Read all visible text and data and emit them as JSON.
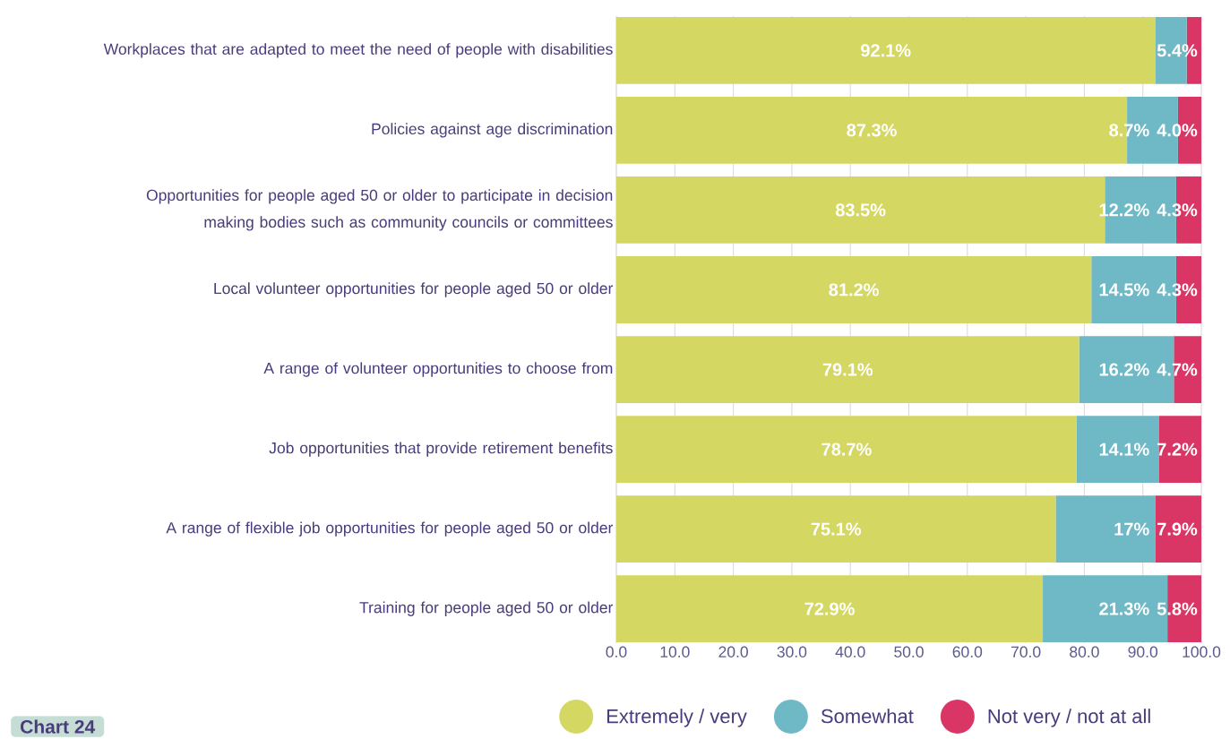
{
  "chart_data": {
    "type": "bar",
    "orientation": "horizontal",
    "stacked": true,
    "categories": [
      "Workplaces that are adapted to meet the need of people with disabilities",
      "Policies against age discrimination",
      "Opportunities for people aged 50 or older to participate in decision making bodies such as community councils or committees",
      "Local volunteer opportunities for people aged 50 or older",
      "A range of volunteer opportunities to choose from",
      "Job opportunities that provide retirement benefits",
      "A range of flexible job opportunities for people aged 50 or older",
      "Training for people aged 50 or older"
    ],
    "series": [
      {
        "name": "Extremely / very",
        "color": "#d4d862",
        "values": [
          92.1,
          87.3,
          83.5,
          81.2,
          79.1,
          78.7,
          75.1,
          72.9
        ],
        "value_labels": [
          "92.1%",
          "87.3%",
          "83.5%",
          "81.2%",
          "79.1%",
          "78.7%",
          "75.1%",
          "72.9%"
        ]
      },
      {
        "name": "Somewhat",
        "color": "#6fb9c6",
        "values": [
          5.4,
          8.7,
          12.2,
          14.5,
          16.2,
          14.1,
          17,
          21.3
        ],
        "value_labels": [
          "5.4%",
          "8.7%",
          "12.2%",
          "14.5%",
          "16.2%",
          "14.1%",
          "17%",
          "21.3%"
        ]
      },
      {
        "name": "Not very / not at all",
        "color": "#d93665",
        "values": [
          2.5,
          4.0,
          4.3,
          4.3,
          4.7,
          7.2,
          7.9,
          5.8
        ],
        "value_labels": [
          null,
          "4.0%",
          "4.3%",
          "4.3%",
          "4.7%",
          "7.2%",
          "7.9%",
          "5.8%"
        ]
      }
    ],
    "xlim": [
      0,
      100
    ],
    "xticks": [
      {
        "value": 0,
        "label": "0.0"
      },
      {
        "value": 10,
        "label": "10.0"
      },
      {
        "value": 20,
        "label": "20.0"
      },
      {
        "value": 30,
        "label": "30.0"
      },
      {
        "value": 40,
        "label": "40.0"
      },
      {
        "value": 50,
        "label": "50.0"
      },
      {
        "value": 60,
        "label": "60.0"
      },
      {
        "value": 70,
        "label": "70.0"
      },
      {
        "value": 80,
        "label": "80.0"
      },
      {
        "value": 90,
        "label": "90.0"
      },
      {
        "value": 100,
        "label": "100.0"
      }
    ],
    "grid": "x",
    "legend": "bottom",
    "annotations": [
      "Chart 24"
    ]
  }
}
